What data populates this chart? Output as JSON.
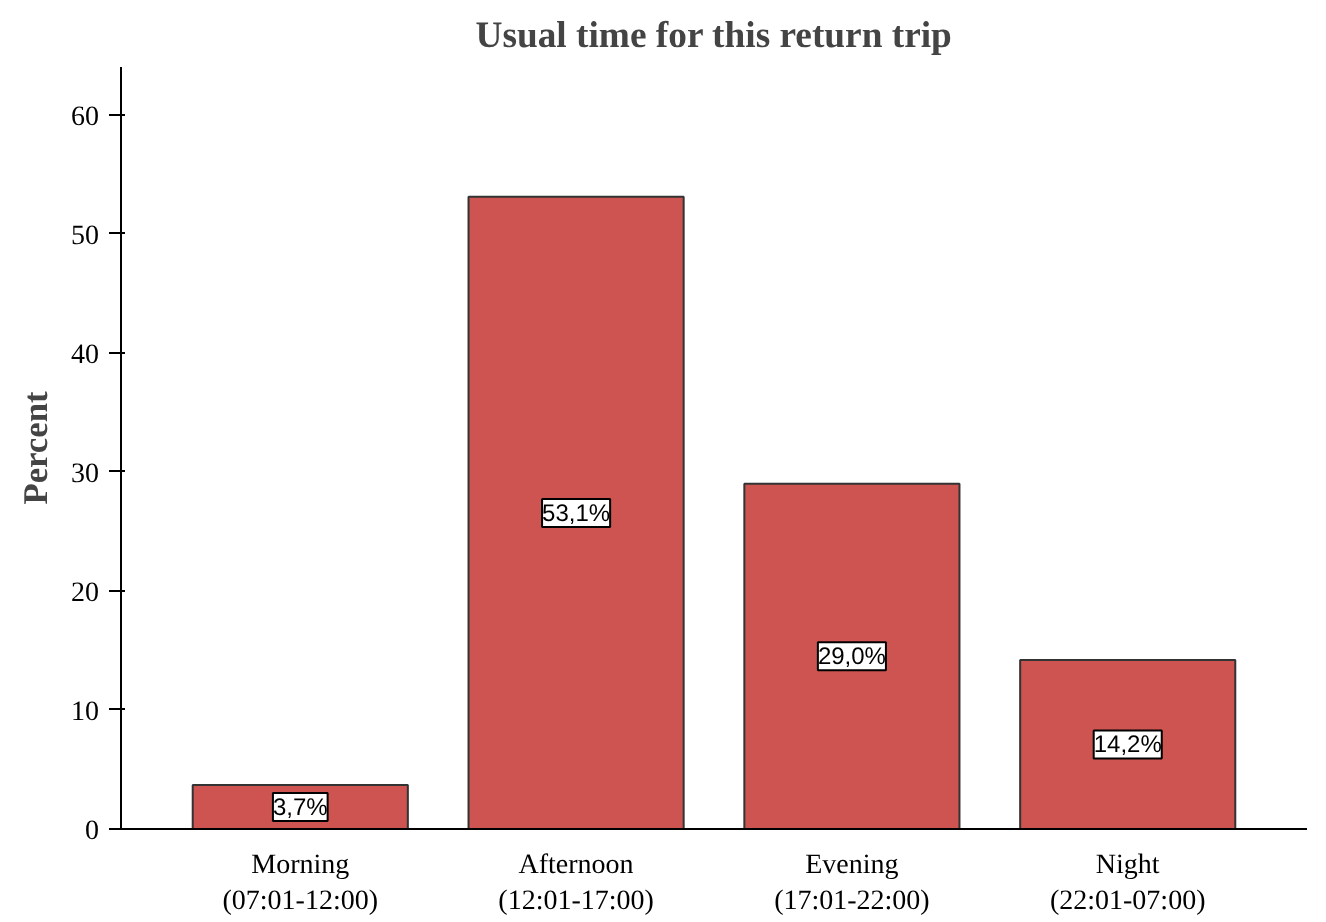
{
  "chart_data": {
    "type": "bar",
    "title": "Usual time for this return trip",
    "ylabel": "Percent",
    "categories": [
      "Morning\n(07:01-12:00)",
      "Afternoon\n(12:01-17:00)",
      "Evening\n(17:01-22:00)",
      "Night\n(22:01-07:00)"
    ],
    "values": [
      3.7,
      53.1,
      29.0,
      14.2
    ],
    "color": "#cd5450",
    "value_labels": [
      "3,7%",
      "53,1%",
      "29,0%",
      "14,2%"
    ],
    "ylim": [
      0,
      64
    ],
    "yticks": [
      0,
      10,
      20,
      30,
      40,
      50,
      60
    ],
    "grid": false
  }
}
